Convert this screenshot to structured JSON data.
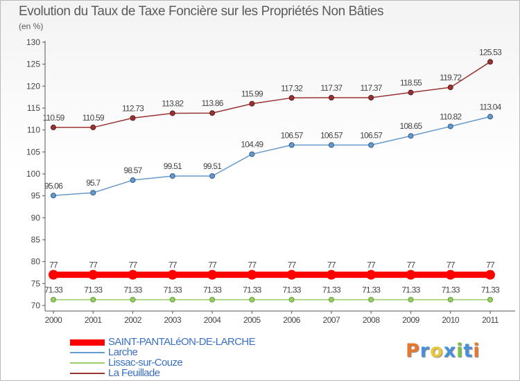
{
  "header": {
    "title": "Evolution du Taux de Taxe Foncière sur les Propriétés Non Bâties",
    "unit": "(en %)"
  },
  "logo": {
    "text": "Proxiti",
    "colors": [
      "#e8772e",
      "#4a90d9",
      "#e8c93b",
      "#4a90d9",
      "#7bc043",
      "#4a90d9",
      "#e8772e"
    ]
  },
  "chart_data": {
    "type": "line",
    "title": "Evolution du Taux de Taxe Foncière sur les Propriétés Non Bâties",
    "ylabel": "(en %)",
    "xlabel": "",
    "x": [
      "2000",
      "2001",
      "2002",
      "2003",
      "2004",
      "2005",
      "2006",
      "2007",
      "2008",
      "2009",
      "2010",
      "2011"
    ],
    "ylim": [
      70,
      130
    ],
    "yticks": [
      70,
      75,
      80,
      85,
      90,
      95,
      100,
      105,
      110,
      115,
      120,
      125,
      130
    ],
    "grid": false,
    "legend_position": "bottom-left",
    "series": [
      {
        "name": "SAINT-PANTALéON-DE-LARCHE",
        "color": "#ff0000",
        "values": [
          77,
          77,
          77,
          77,
          77,
          77,
          77,
          77,
          77,
          77,
          77,
          77
        ],
        "labels": [
          "77",
          "77",
          "77",
          "77",
          "77",
          "77",
          "77",
          "77",
          "77",
          "77",
          "77",
          "77"
        ]
      },
      {
        "name": "Larche",
        "color": "#6699cc",
        "values": [
          95.06,
          95.7,
          98.57,
          99.51,
          99.51,
          104.49,
          106.57,
          106.57,
          106.57,
          108.65,
          110.82,
          113.04
        ],
        "labels": [
          "95.06",
          "95.7",
          "98.57",
          "99.51",
          "99.51",
          "104.49",
          "106.57",
          "106.57",
          "106.57",
          "108.65",
          "110.82",
          "113.04"
        ]
      },
      {
        "name": "Lissac-sur-Couze",
        "color": "#99cc66",
        "values": [
          71.33,
          71.33,
          71.33,
          71.33,
          71.33,
          71.33,
          71.33,
          71.33,
          71.33,
          71.33,
          71.33,
          71.33
        ],
        "labels": [
          "71.33",
          "71.33",
          "71.33",
          "71.33",
          "71.33",
          "71.33",
          "71.33",
          "71.33",
          "71.33",
          "71.33",
          "71.33",
          "71.33"
        ]
      },
      {
        "name": "La Feuillade",
        "color": "#993333",
        "values": [
          110.59,
          110.59,
          112.73,
          113.82,
          113.86,
          115.99,
          117.32,
          117.37,
          117.37,
          118.55,
          119.72,
          125.53
        ],
        "labels": [
          "110.59",
          "110.59",
          "112.73",
          "113.82",
          "113.86",
          "115.99",
          "117.32",
          "117.37",
          "117.37",
          "118.55",
          "119.72",
          "125.53"
        ]
      }
    ]
  }
}
